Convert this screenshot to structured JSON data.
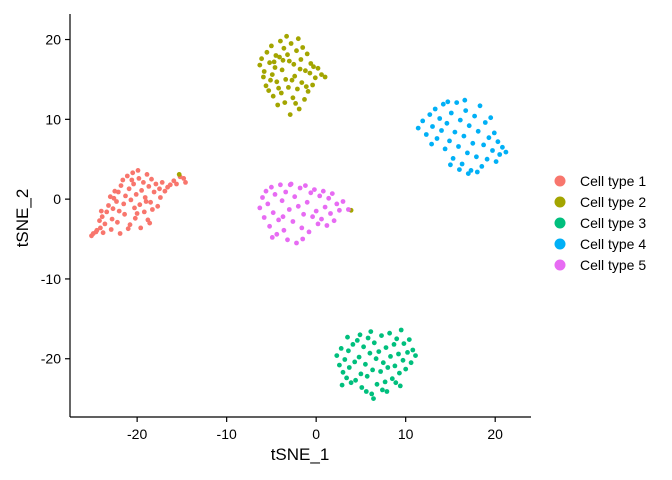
{
  "chart_data": {
    "type": "scatter",
    "xlabel": "tSNE_1",
    "ylabel": "tSNE_2",
    "xlim": [
      -27.5,
      24
    ],
    "ylim": [
      -27.3,
      23.2
    ],
    "x_ticks": [
      -20,
      -10,
      0,
      10,
      20
    ],
    "y_ticks": [
      -20,
      -10,
      0,
      10,
      20
    ],
    "x_tick_labels": [
      "-20",
      "-10",
      "0",
      "10",
      "20"
    ],
    "y_tick_labels": [
      "-20",
      "-10",
      "0",
      "10",
      "20"
    ],
    "grid": false,
    "legend_position": "right",
    "series": [
      {
        "name": "Cell type 1",
        "color": "#F8766D",
        "points": [
          [
            -25.1,
            -4.6
          ],
          [
            -24.9,
            -4.3
          ],
          [
            -24.5,
            -3.9
          ],
          [
            -24.6,
            -4.1
          ],
          [
            -24.1,
            -3.6
          ],
          [
            -24.2,
            -2.7
          ],
          [
            -23.9,
            -2.2
          ],
          [
            -23.6,
            -3.1
          ],
          [
            -23.8,
            -4.2
          ],
          [
            -23.4,
            -1.6
          ],
          [
            -23.2,
            -0.8
          ],
          [
            -23.0,
            0.3
          ],
          [
            -22.8,
            -2.5
          ],
          [
            -22.9,
            -3.8
          ],
          [
            -22.5,
            1.0
          ],
          [
            -22.7,
            -1.2
          ],
          [
            -22.3,
            -0.3
          ],
          [
            -22.1,
            0.9
          ],
          [
            -22.2,
            -2.9
          ],
          [
            -21.9,
            -4.3
          ],
          [
            -21.8,
            1.7
          ],
          [
            -21.6,
            2.4
          ],
          [
            -21.5,
            -0.6
          ],
          [
            -21.3,
            0.4
          ],
          [
            -21.4,
            -1.9
          ],
          [
            -21.1,
            2.9
          ],
          [
            -20.9,
            1.3
          ],
          [
            -20.8,
            -3.2
          ],
          [
            -20.7,
            -0.1
          ],
          [
            -20.5,
            3.3
          ],
          [
            -20.4,
            1.9
          ],
          [
            -20.3,
            -1.1
          ],
          [
            -20.1,
            0.6
          ],
          [
            -20.2,
            -2.4
          ],
          [
            -19.9,
            3.6
          ],
          [
            -19.8,
            2.6
          ],
          [
            -19.7,
            -0.7
          ],
          [
            -19.5,
            1.1
          ],
          [
            -19.6,
            -3.6
          ],
          [
            -19.3,
            2.1
          ],
          [
            -19.2,
            -1.6
          ],
          [
            -19.1,
            0.2
          ],
          [
            -18.9,
            3.1
          ],
          [
            -18.8,
            -2.6
          ],
          [
            -18.7,
            1.6
          ],
          [
            -18.5,
            -0.4
          ],
          [
            -18.4,
            2.5
          ],
          [
            -18.3,
            -1.3
          ],
          [
            -18.1,
            0.9
          ],
          [
            -17.9,
            1.9
          ],
          [
            -17.7,
            -0.9
          ],
          [
            -17.5,
            1.3
          ],
          [
            -17.4,
            0.2
          ],
          [
            -17.2,
            2.1
          ],
          [
            -16.9,
            1.0
          ],
          [
            -16.6,
            1.5
          ],
          [
            -16.3,
            1.8
          ],
          [
            -15.9,
            2.3
          ],
          [
            -15.6,
            1.9
          ],
          [
            -15.2,
            2.8
          ],
          [
            -14.8,
            2.6
          ],
          [
            -14.6,
            2.1
          ],
          [
            -22.6,
            0.1
          ],
          [
            -21.0,
            -3.7
          ],
          [
            -20.6,
            2.4
          ],
          [
            -19.0,
            -0.3
          ],
          [
            -18.6,
            -3.0
          ],
          [
            -24.0,
            -1.5
          ],
          [
            -22.0,
            -1.5
          ],
          [
            -20.0,
            -1.8
          ]
        ]
      },
      {
        "name": "Cell type 2",
        "color": "#A3A500",
        "points": [
          [
            -6.3,
            16.8
          ],
          [
            -6.1,
            17.6
          ],
          [
            -5.9,
            15.3
          ],
          [
            -5.8,
            16.0
          ],
          [
            -5.6,
            14.2
          ],
          [
            -5.5,
            18.4
          ],
          [
            -5.3,
            13.6
          ],
          [
            -5.2,
            17.1
          ],
          [
            -5.0,
            19.2
          ],
          [
            -4.9,
            15.6
          ],
          [
            -4.8,
            12.9
          ],
          [
            -4.6,
            16.5
          ],
          [
            -4.5,
            18.0
          ],
          [
            -4.4,
            14.7
          ],
          [
            -4.3,
            11.8
          ],
          [
            -4.1,
            17.8
          ],
          [
            -4.0,
            19.8
          ],
          [
            -3.9,
            13.3
          ],
          [
            -3.8,
            16.2
          ],
          [
            -3.6,
            18.9
          ],
          [
            -3.5,
            12.1
          ],
          [
            -3.4,
            15.0
          ],
          [
            -3.3,
            20.4
          ],
          [
            -3.1,
            14.0
          ],
          [
            -3.0,
            17.3
          ],
          [
            -2.9,
            10.6
          ],
          [
            -2.8,
            19.5
          ],
          [
            -2.6,
            12.7
          ],
          [
            -2.5,
            16.9
          ],
          [
            -2.4,
            15.4
          ],
          [
            -2.2,
            18.6
          ],
          [
            -2.1,
            13.8
          ],
          [
            -2.0,
            20.1
          ],
          [
            -1.9,
            11.3
          ],
          [
            -1.7,
            17.5
          ],
          [
            -1.6,
            14.6
          ],
          [
            -1.5,
            19.0
          ],
          [
            -1.3,
            12.5
          ],
          [
            -1.2,
            16.1
          ],
          [
            -1.0,
            18.2
          ],
          [
            -0.9,
            13.5
          ],
          [
            -0.7,
            15.8
          ],
          [
            -0.6,
            17.0
          ],
          [
            -0.4,
            14.3
          ],
          [
            -0.3,
            16.6
          ],
          [
            -0.1,
            15.2
          ],
          [
            0.2,
            16.4
          ],
          [
            0.6,
            15.6
          ],
          [
            1.0,
            15.3
          ],
          [
            -5.1,
            14.9
          ],
          [
            -4.2,
            13.9
          ],
          [
            -3.7,
            17.4
          ],
          [
            -2.7,
            14.9
          ],
          [
            -1.8,
            16.3
          ],
          [
            -3.2,
            18.1
          ],
          [
            -2.3,
            12.0
          ],
          [
            -1.1,
            14.1
          ],
          [
            -4.7,
            17.2
          ],
          [
            3.9,
            -1.4
          ],
          [
            -15.3,
            3.1
          ]
        ]
      },
      {
        "name": "Cell type 3",
        "color": "#00BF7D",
        "points": [
          [
            2.3,
            -19.6
          ],
          [
            2.6,
            -20.8
          ],
          [
            2.8,
            -18.7
          ],
          [
            3.0,
            -21.7
          ],
          [
            3.2,
            -20.1
          ],
          [
            3.4,
            -22.4
          ],
          [
            3.6,
            -19.0
          ],
          [
            3.7,
            -21.1
          ],
          [
            3.9,
            -23.0
          ],
          [
            4.1,
            -18.2
          ],
          [
            4.3,
            -20.4
          ],
          [
            4.4,
            -22.7
          ],
          [
            4.6,
            -17.7
          ],
          [
            4.8,
            -19.8
          ],
          [
            5.0,
            -21.9
          ],
          [
            5.1,
            -23.6
          ],
          [
            5.3,
            -18.5
          ],
          [
            5.5,
            -20.7
          ],
          [
            5.7,
            -22.2
          ],
          [
            5.8,
            -17.4
          ],
          [
            6.0,
            -19.3
          ],
          [
            6.2,
            -24.4
          ],
          [
            6.3,
            -21.4
          ],
          [
            6.5,
            -18.0
          ],
          [
            6.7,
            -20.0
          ],
          [
            6.8,
            -23.2
          ],
          [
            7.0,
            -19.1
          ],
          [
            7.2,
            -21.6
          ],
          [
            7.3,
            -17.1
          ],
          [
            7.5,
            -20.5
          ],
          [
            7.7,
            -22.9
          ],
          [
            7.8,
            -18.6
          ],
          [
            8.0,
            -21.1
          ],
          [
            8.2,
            -16.8
          ],
          [
            8.3,
            -19.7
          ],
          [
            8.5,
            -22.5
          ],
          [
            8.7,
            -18.2
          ],
          [
            8.8,
            -20.9
          ],
          [
            9.0,
            -17.5
          ],
          [
            9.2,
            -19.4
          ],
          [
            9.3,
            -21.8
          ],
          [
            9.5,
            -16.4
          ],
          [
            9.7,
            -20.2
          ],
          [
            9.8,
            -18.1
          ],
          [
            10.0,
            -21.3
          ],
          [
            10.2,
            -19.2
          ],
          [
            10.4,
            -17.6
          ],
          [
            10.6,
            -20.5
          ],
          [
            10.8,
            -18.9
          ],
          [
            11.1,
            -19.6
          ],
          [
            6.4,
            -25.0
          ],
          [
            5.6,
            -24.1
          ],
          [
            7.4,
            -23.9
          ],
          [
            4.9,
            -17.0
          ],
          [
            8.9,
            -23.0
          ],
          [
            7.9,
            -24.1
          ],
          [
            3.5,
            -17.3
          ],
          [
            6.1,
            -16.6
          ],
          [
            9.4,
            -23.4
          ],
          [
            2.9,
            -23.3
          ]
        ]
      },
      {
        "name": "Cell type 4",
        "color": "#00B0F6",
        "points": [
          [
            11.4,
            8.9
          ],
          [
            11.9,
            9.8
          ],
          [
            12.3,
            8.1
          ],
          [
            12.7,
            10.6
          ],
          [
            13.0,
            9.1
          ],
          [
            13.3,
            11.3
          ],
          [
            13.5,
            7.6
          ],
          [
            13.8,
            10.1
          ],
          [
            14.0,
            8.6
          ],
          [
            14.2,
            11.9
          ],
          [
            14.4,
            6.3
          ],
          [
            14.6,
            9.5
          ],
          [
            14.9,
            7.3
          ],
          [
            15.1,
            10.8
          ],
          [
            15.3,
            5.1
          ],
          [
            15.5,
            8.4
          ],
          [
            15.7,
            12.1
          ],
          [
            15.9,
            6.6
          ],
          [
            16.1,
            9.9
          ],
          [
            16.3,
            4.4
          ],
          [
            16.5,
            7.9
          ],
          [
            16.7,
            11.1
          ],
          [
            16.9,
            5.8
          ],
          [
            17.1,
            9.2
          ],
          [
            17.3,
            3.6
          ],
          [
            17.5,
            7.0
          ],
          [
            17.7,
            10.4
          ],
          [
            17.9,
            5.3
          ],
          [
            18.1,
            8.5
          ],
          [
            18.3,
            11.7
          ],
          [
            18.5,
            4.1
          ],
          [
            18.7,
            6.8
          ],
          [
            18.9,
            9.6
          ],
          [
            19.1,
            5.0
          ],
          [
            19.3,
            7.7
          ],
          [
            19.5,
            10.2
          ],
          [
            19.7,
            6.1
          ],
          [
            19.9,
            8.3
          ],
          [
            20.1,
            4.7
          ],
          [
            20.3,
            7.2
          ],
          [
            20.5,
            5.6
          ],
          [
            20.8,
            6.5
          ],
          [
            21.2,
            5.9
          ],
          [
            15.0,
            4.3
          ],
          [
            16.0,
            3.7
          ],
          [
            17.0,
            3.2
          ],
          [
            18.0,
            3.4
          ],
          [
            12.9,
            6.9
          ],
          [
            14.7,
            12.2
          ],
          [
            16.6,
            12.4
          ]
        ]
      },
      {
        "name": "Cell type 5",
        "color": "#E76BF3",
        "points": [
          [
            -6.3,
            -1.1
          ],
          [
            -6.0,
            0.2
          ],
          [
            -5.8,
            -2.3
          ],
          [
            -5.6,
            1.0
          ],
          [
            -5.4,
            -0.6
          ],
          [
            -5.2,
            -3.4
          ],
          [
            -5.0,
            1.5
          ],
          [
            -4.8,
            -1.7
          ],
          [
            -4.6,
            0.6
          ],
          [
            -4.4,
            -4.4
          ],
          [
            -4.2,
            -2.6
          ],
          [
            -4.0,
            1.8
          ],
          [
            -3.8,
            -0.2
          ],
          [
            -3.6,
            -3.9
          ],
          [
            -3.4,
            0.9
          ],
          [
            -3.2,
            -5.1
          ],
          [
            -3.0,
            -1.3
          ],
          [
            -2.8,
            1.9
          ],
          [
            -2.6,
            -2.8
          ],
          [
            -2.4,
            0.3
          ],
          [
            -2.2,
            -5.5
          ],
          [
            -2.0,
            -0.9
          ],
          [
            -1.8,
            1.4
          ],
          [
            -1.6,
            -3.6
          ],
          [
            -1.4,
            -1.9
          ],
          [
            -1.2,
            1.7
          ],
          [
            -1.0,
            -0.4
          ],
          [
            -0.8,
            -4.1
          ],
          [
            -0.6,
            0.8
          ],
          [
            -0.4,
            -2.2
          ],
          [
            -0.2,
            1.2
          ],
          [
            0.0,
            -1.5
          ],
          [
            0.2,
            -3.1
          ],
          [
            0.4,
            0.4
          ],
          [
            0.6,
            -2.5
          ],
          [
            0.8,
            1.0
          ],
          [
            1.0,
            -1.0
          ],
          [
            1.2,
            -3.3
          ],
          [
            1.4,
            0.1
          ],
          [
            1.6,
            -1.8
          ],
          [
            1.8,
            0.7
          ],
          [
            2.0,
            -2.7
          ],
          [
            2.3,
            -0.6
          ],
          [
            2.6,
            -1.4
          ],
          [
            3.0,
            -0.3
          ],
          [
            3.6,
            -1.3
          ],
          [
            -2.9,
            1.8
          ],
          [
            -4.9,
            -4.8
          ],
          [
            -3.7,
            -2.2
          ],
          [
            -1.5,
            -5.0
          ]
        ]
      }
    ]
  }
}
